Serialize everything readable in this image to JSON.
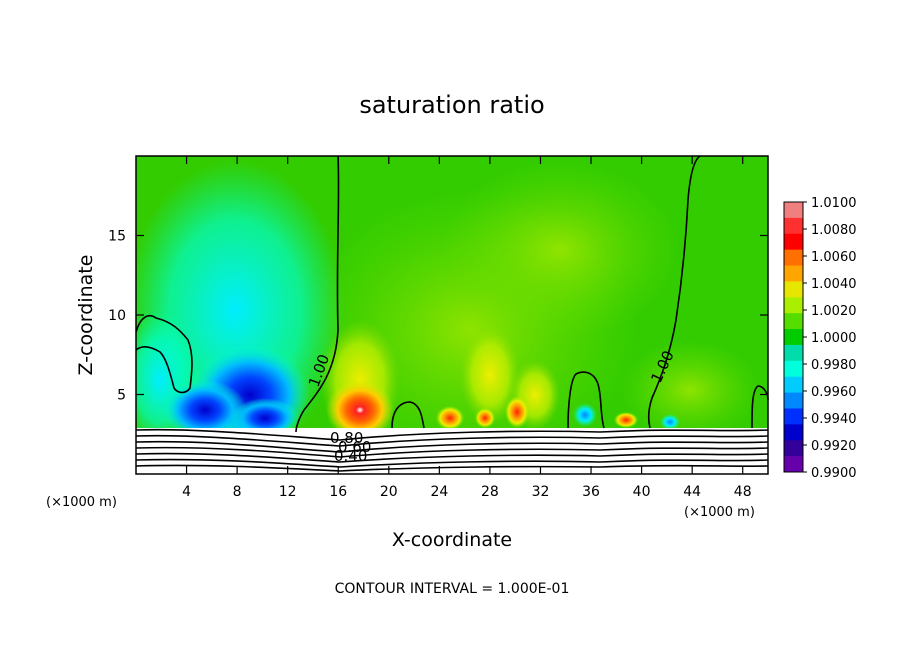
{
  "chart_data": {
    "type": "heatmap",
    "title": "saturation ratio",
    "xlabel": "X-coordinate",
    "ylabel": "Z-coordinate",
    "x_unit": "(×1000 m)",
    "x_unit_right": "(×1000 m)",
    "xlim": [
      0,
      50
    ],
    "ylim": [
      0,
      20
    ],
    "x_ticks": [
      4,
      8,
      12,
      16,
      20,
      24,
      28,
      32,
      36,
      40,
      44,
      48
    ],
    "y_ticks": [
      5,
      10,
      15
    ],
    "colorbar": {
      "levels": [
        "1.0100",
        "1.0080",
        "1.0060",
        "1.0040",
        "1.0020",
        "1.0000",
        "0.9980",
        "0.9960",
        "0.9940",
        "0.9920",
        "0.9900"
      ],
      "colors": [
        "#f08080",
        "#ff3030",
        "#ff0000",
        "#ff7000",
        "#ffa500",
        "#e6e600",
        "#aaee00",
        "#55dd00",
        "#00cc00",
        "#00ddaa",
        "#00ffdd",
        "#00ccff",
        "#0088ff",
        "#0030ff",
        "#0000cc",
        "#330099",
        "#6600aa"
      ]
    },
    "contour_labels": [
      {
        "text": "1.00",
        "x": 14.2,
        "z": 6.5
      },
      {
        "text": "1.00",
        "x": 41.0,
        "z": 7.0
      },
      {
        "text": "0.80",
        "x": 17.5,
        "z": 1.9
      },
      {
        "text": "0.60",
        "x": 17.5,
        "z": 1.2
      },
      {
        "text": "0.40",
        "x": 17.5,
        "z": 0.6
      }
    ],
    "contour_interval_text": "CONTOUR INTERVAL = 1.000E-01"
  }
}
